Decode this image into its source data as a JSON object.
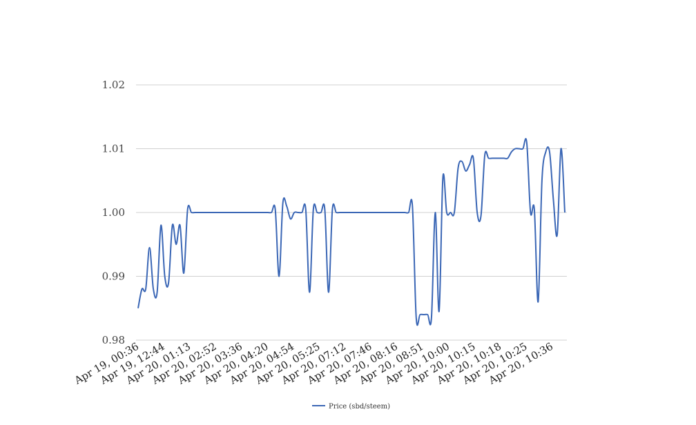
{
  "chart_data": {
    "type": "line",
    "title": "",
    "xlabel": "",
    "ylabel": "",
    "ylim": [
      0.98,
      1.02
    ],
    "y_ticks": [
      "0.98",
      "0.99",
      "1.00",
      "1.01",
      "1.02"
    ],
    "grid": "horizontal",
    "legend_position": "bottom",
    "x_tick_labels": [
      "Apr 19, 00:36",
      "Apr 19, 12:44",
      "Apr 20, 01:13",
      "Apr 20, 02:52",
      "Apr 20, 03:36",
      "Apr 20, 04:20",
      "Apr 20, 04:54",
      "Apr 20, 05:25",
      "Apr 20, 07:12",
      "Apr 20, 07:46",
      "Apr 20, 08:16",
      "Apr 20, 08:51",
      "Apr 20, 10:00",
      "Apr 20, 10:15",
      "Apr 20, 10:18",
      "Apr 20, 10:25",
      "Apr 20, 10:36"
    ],
    "series": [
      {
        "name": "Price (sbd/steem)",
        "color": "#3a66b5",
        "values": [
          0.985,
          0.988,
          0.988,
          0.9945,
          0.988,
          0.9875,
          0.998,
          0.99,
          0.989,
          0.998,
          0.995,
          0.998,
          0.9905,
          1.0005,
          1.0,
          1.0,
          1.0,
          1.0,
          1.0,
          1.0,
          1.0,
          1.0,
          1.0,
          1.0,
          1.0,
          1.0,
          1.0,
          1.0,
          1.0,
          1.0,
          1.0,
          1.0,
          1.0,
          1.0,
          1.0,
          1.0,
          1.0005,
          0.99,
          1.0015,
          1.001,
          0.999,
          1.0,
          1.0,
          1.0,
          1.0005,
          0.9875,
          1.0005,
          1.0,
          1.0,
          1.0005,
          0.9875,
          1.0005,
          1.0,
          1.0,
          1.0,
          1.0,
          1.0,
          1.0,
          1.0,
          1.0,
          1.0,
          1.0,
          1.0,
          1.0,
          1.0,
          1.0,
          1.0,
          1.0,
          1.0,
          1.0,
          1.0,
          1.0,
          1.001,
          0.9835,
          0.984,
          0.984,
          0.984,
          0.9835,
          1.0,
          0.9845,
          1.0055,
          1.0,
          1.0,
          1.0,
          1.007,
          1.008,
          1.0065,
          1.0075,
          1.0085,
          1.0,
          0.9995,
          1.009,
          1.0085,
          1.0085,
          1.0085,
          1.0085,
          1.0085,
          1.0085,
          1.0095,
          1.01,
          1.01,
          1.01,
          1.011,
          1.0,
          1.0005,
          0.986,
          1.005,
          1.0095,
          1.0095,
          1.002,
          0.9965,
          1.01,
          1.0
        ]
      }
    ]
  }
}
